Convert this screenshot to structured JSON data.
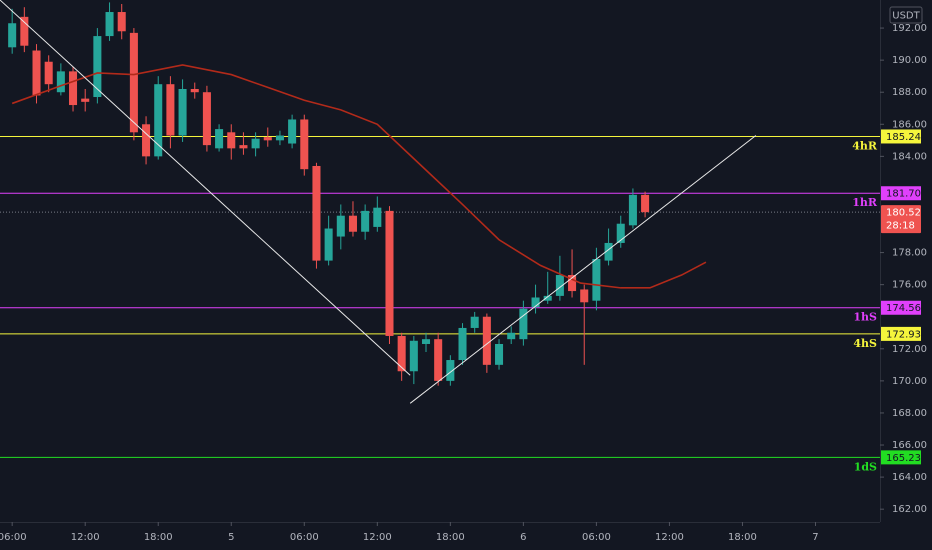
{
  "chart_data": {
    "type": "candlestick",
    "currency": "USDT",
    "x": [
      0,
      1,
      2,
      3,
      4,
      5,
      6,
      7,
      8,
      9,
      10,
      11,
      12,
      13,
      14,
      15,
      16,
      17,
      18,
      19,
      20,
      21,
      22,
      23,
      24,
      25,
      26,
      27,
      28,
      29,
      30,
      31,
      32,
      33,
      34,
      35,
      36,
      37,
      38,
      39,
      40,
      41,
      42,
      43,
      44,
      45,
      46,
      47,
      48,
      49,
      50,
      51,
      52
    ],
    "open": [
      190.8,
      192.7,
      190.6,
      189.9,
      188,
      189.3,
      187.6,
      187.7,
      191.5,
      193,
      191.7,
      186,
      184,
      188.5,
      185.3,
      188.2,
      188,
      184.5,
      185.5,
      184.7,
      184.5,
      185.2,
      185,
      184.8,
      186.3,
      183.4,
      177.5,
      179,
      180.3,
      179.3,
      179.6,
      180.6,
      172.8,
      170.6,
      172.3,
      172.6,
      170,
      171.3,
      173.3,
      174,
      171,
      172.6,
      172.6,
      174.6,
      175,
      175.3,
      176.6,
      175.7,
      175,
      177.5,
      178.6,
      179.7,
      181.6
    ],
    "high": [
      193.2,
      193.3,
      191,
      190.3,
      189.8,
      189.6,
      188.2,
      192,
      193.6,
      193.5,
      192,
      186.5,
      189,
      189,
      188.8,
      188.6,
      188.4,
      186,
      186,
      185.5,
      185.5,
      185.8,
      185.6,
      186.6,
      186.6,
      183.6,
      180.3,
      181,
      181.2,
      181,
      181.5,
      180.9,
      173,
      172.8,
      173,
      173,
      171.6,
      173.6,
      174.3,
      174.2,
      172.6,
      173.4,
      175,
      176,
      176.8,
      177.8,
      178.2,
      176,
      178.3,
      179.5,
      180.3,
      182,
      181.8
    ],
    "low": [
      190.4,
      190.5,
      187.3,
      188,
      187.8,
      186.8,
      186.8,
      187.3,
      191.2,
      191.3,
      185,
      183.5,
      183.8,
      184.5,
      184.9,
      187.6,
      184.3,
      184.3,
      183.8,
      184.1,
      184,
      184.6,
      184.7,
      184.5,
      182.8,
      177,
      177.2,
      178.2,
      179,
      178.8,
      179.3,
      172.3,
      170,
      169.8,
      171.8,
      169.7,
      169.7,
      171,
      173,
      170.5,
      170.7,
      172.3,
      172.2,
      174.2,
      174.8,
      175,
      175.2,
      171,
      174.4,
      177.2,
      178.3,
      179.5,
      180.2
    ],
    "close": [
      192.3,
      190.9,
      187.8,
      188.5,
      189.3,
      187.2,
      187.4,
      191.5,
      193,
      191.8,
      185.5,
      184,
      188.5,
      185.3,
      188.2,
      188,
      184.7,
      185.7,
      184.5,
      184.5,
      185.1,
      185,
      185.3,
      186.3,
      183.2,
      177.5,
      179.5,
      180.3,
      179.3,
      180.6,
      180.8,
      172.8,
      170.6,
      172.5,
      172.6,
      170,
      171.3,
      173.3,
      174,
      171,
      172.3,
      173,
      174.5,
      175.2,
      175.3,
      176.6,
      175.6,
      174.9,
      177.6,
      178.6,
      179.8,
      181.6,
      180.52
    ],
    "up_color": "#26a69a",
    "down_color": "#ef5350",
    "xlim": [
      -1,
      71.3
    ],
    "ylim": [
      161.2,
      193.75
    ],
    "xticks": [
      {
        "value": 0,
        "label": "06:00"
      },
      {
        "value": 6,
        "label": "12:00"
      },
      {
        "value": 12,
        "label": "18:00"
      },
      {
        "value": 18,
        "label": "5"
      },
      {
        "value": 24,
        "label": "06:00"
      },
      {
        "value": 30,
        "label": "12:00"
      },
      {
        "value": 36,
        "label": "18:00"
      },
      {
        "value": 42,
        "label": "6"
      },
      {
        "value": 48,
        "label": "06:00"
      },
      {
        "value": 54,
        "label": "12:00"
      },
      {
        "value": 60,
        "label": "18:00"
      },
      {
        "value": 66,
        "label": "7"
      }
    ],
    "yticks": [
      {
        "value": 192,
        "label": "192.00"
      },
      {
        "value": 190,
        "label": "190.00"
      },
      {
        "value": 188,
        "label": "188.00"
      },
      {
        "value": 186,
        "label": "186.00"
      },
      {
        "value": 184,
        "label": "184.00"
      },
      {
        "value": 178,
        "label": "178.00"
      },
      {
        "value": 176,
        "label": "176.00"
      },
      {
        "value": 172,
        "label": "172.00"
      },
      {
        "value": 170,
        "label": "170.00"
      },
      {
        "value": 168,
        "label": "168.00"
      },
      {
        "value": 166,
        "label": "166.00"
      },
      {
        "value": 164,
        "label": "164.00"
      },
      {
        "value": 162,
        "label": "162.00"
      }
    ],
    "grid": false,
    "moving_average": {
      "color": "#b22a1a",
      "x": [
        0,
        4,
        7,
        10,
        14,
        18,
        21,
        24,
        27,
        30,
        33.5,
        37,
        40,
        43.4,
        46.7,
        50,
        52.4,
        55,
        57
      ],
      "values": [
        187.3,
        188.4,
        189.2,
        189.1,
        189.7,
        189.1,
        188.3,
        187.5,
        186.9,
        186,
        183.5,
        181,
        178.8,
        177.2,
        176.1,
        175.8,
        175.8,
        176.6,
        177.4
      ]
    },
    "trendlines": [
      {
        "color": "#e8e8e8",
        "x": [
          -1,
          32.7
        ],
        "y": [
          193.75,
          170.35
        ]
      },
      {
        "color": "#e8e8e8",
        "x": [
          32.7,
          61.1
        ],
        "y": [
          168.6,
          185.3
        ]
      }
    ],
    "levels": [
      {
        "name": "4hR",
        "value": 185.24,
        "color": "#f5f53c"
      },
      {
        "name": "1hR",
        "value": {
          "value": 181.7,
          "label": "181.70"
        },
        "color": "#e040fb"
      },
      {
        "name": "1hS",
        "value": 174.56,
        "color": "#e040fb"
      },
      {
        "name": "4hS",
        "value": 172.93,
        "color": "#f5f53c"
      },
      {
        "name": "1dS",
        "value": 165.23,
        "color": "#22dd22"
      }
    ],
    "last_price": {
      "value": 180.52,
      "countdown": "28:18",
      "color": "#ef5350"
    }
  }
}
